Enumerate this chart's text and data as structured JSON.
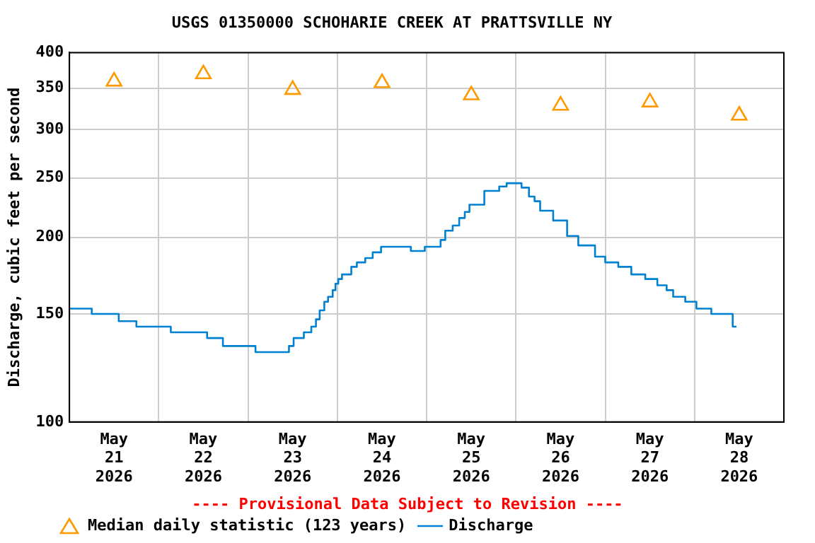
{
  "chart_data": {
    "type": "step",
    "title": "USGS 01350000 SCHOHARIE CREEK AT PRATTSVILLE NY",
    "ylabel": "Discharge, cubic feet per second",
    "log": "y",
    "grid": true,
    "legend": "bottom",
    "annotations": [
      "---- Provisional Data Subject to Revision ----"
    ],
    "xlim": [
      "2026-05-21T00:00",
      "2026-05-29T00:00"
    ],
    "xticks": [
      {
        "value": "2026-05-21T12:00",
        "label": "May\n21\n2026"
      },
      {
        "value": "2026-05-22T12:00",
        "label": "May\n22\n2026"
      },
      {
        "value": "2026-05-23T12:00",
        "label": "May\n23\n2026"
      },
      {
        "value": "2026-05-24T12:00",
        "label": "May\n24\n2026"
      },
      {
        "value": "2026-05-25T12:00",
        "label": "May\n25\n2026"
      },
      {
        "value": "2026-05-26T12:00",
        "label": "May\n26\n2026"
      },
      {
        "value": "2026-05-27T12:00",
        "label": "May\n27\n2026"
      },
      {
        "value": "2026-05-28T12:00",
        "label": "May\n28\n2026"
      },
      {
        "value": "2026-05-22T00:00",
        "label": null
      },
      {
        "value": "2026-05-23T00:00",
        "label": null
      },
      {
        "value": "2026-05-24T00:00",
        "label": null
      },
      {
        "value": "2026-05-25T00:00",
        "label": null
      },
      {
        "value": "2026-05-26T00:00",
        "label": null
      },
      {
        "value": "2026-05-27T00:00",
        "label": null
      },
      {
        "value": "2026-05-28T00:00",
        "label": null
      }
    ],
    "ylim": [
      100,
      400
    ],
    "yticks": [
      100,
      150,
      200,
      250,
      300,
      350,
      400
    ],
    "series": [
      {
        "name": "Median daily statistic (123 years)",
        "type": "scatter",
        "marker": "triangle",
        "color": "#ff9900",
        "x": [
          "2026-05-21T12:00",
          "2026-05-22T12:00",
          "2026-05-23T12:00",
          "2026-05-24T12:00",
          "2026-05-25T12:00",
          "2026-05-26T12:00",
          "2026-05-27T12:00",
          "2026-05-28T12:00"
        ],
        "values": [
          359,
          369,
          348,
          357,
          341,
          328,
          332,
          316
        ]
      },
      {
        "name": "Discharge",
        "color": "#0080d0",
        "x": [
          "2026-05-21T00:00",
          "2026-05-21T06:00",
          "2026-05-21T13:15",
          "2026-05-21T18:00",
          "2026-05-22T03:15",
          "2026-05-22T13:00",
          "2026-05-22T17:15",
          "2026-05-23T02:00",
          "2026-05-23T11:00",
          "2026-05-23T12:15",
          "2026-05-23T15:00",
          "2026-05-23T17:00",
          "2026-05-23T18:15",
          "2026-05-23T19:15",
          "2026-05-23T20:30",
          "2026-05-23T21:30",
          "2026-05-23T22:45",
          "2026-05-23T23:30",
          "2026-05-24T00:15",
          "2026-05-24T01:15",
          "2026-05-24T03:45",
          "2026-05-24T05:15",
          "2026-05-24T07:30",
          "2026-05-24T09:30",
          "2026-05-24T11:45",
          "2026-05-24T19:45",
          "2026-05-24T23:30",
          "2026-05-25T03:45",
          "2026-05-25T05:00",
          "2026-05-25T07:00",
          "2026-05-25T08:45",
          "2026-05-25T10:15",
          "2026-05-25T11:30",
          "2026-05-25T15:30",
          "2026-05-25T19:30",
          "2026-05-25T21:30",
          "2026-05-26T01:30",
          "2026-05-26T03:30",
          "2026-05-26T05:00",
          "2026-05-26T06:30",
          "2026-05-26T10:00",
          "2026-05-26T13:45",
          "2026-05-26T16:45",
          "2026-05-26T21:15",
          "2026-05-27T00:00",
          "2026-05-27T03:30",
          "2026-05-27T07:00",
          "2026-05-27T10:45",
          "2026-05-27T14:00",
          "2026-05-27T16:30",
          "2026-05-27T18:15",
          "2026-05-27T21:30",
          "2026-05-28T00:30",
          "2026-05-28T04:30",
          "2026-05-28T10:15",
          "2026-05-28T11:15"
        ],
        "values": [
          153,
          150,
          146,
          143,
          140,
          137,
          133,
          130,
          133,
          137,
          140,
          143,
          147,
          152,
          157,
          160,
          164,
          168,
          171,
          174,
          179,
          182,
          185,
          189,
          193,
          190,
          193,
          198,
          205,
          209,
          215,
          220,
          226,
          238,
          242,
          245,
          241,
          233,
          229,
          221,
          213,
          201,
          194,
          186,
          182,
          179,
          174,
          171,
          167,
          164,
          160,
          157,
          153,
          150,
          143,
          143
        ]
      }
    ]
  }
}
